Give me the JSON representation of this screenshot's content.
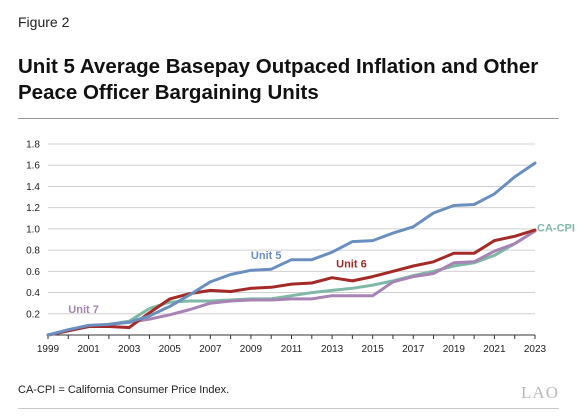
{
  "figure_label": "Figure 2",
  "title": "Unit 5 Average Basepay Outpaced Inflation and Other Peace Officer Bargaining Units",
  "note": "CA-CPI = California Consumer Price Index.",
  "logo": "LAO",
  "chart_data": {
    "type": "line",
    "title": "Unit 5 Average Basepay Outpaced Inflation and Other Peace Officer Bargaining Units",
    "xlabel": "",
    "ylabel": "",
    "xlim": [
      1999,
      2023
    ],
    "ylim": [
      0,
      1.8
    ],
    "x_ticks": [
      "1999",
      "2001",
      "2003",
      "2005",
      "2007",
      "2009",
      "2011",
      "2013",
      "2015",
      "2017",
      "2019",
      "2021",
      "2023"
    ],
    "y_ticks": [
      "0.2",
      "0.4",
      "0.6",
      "0.8",
      "1.0",
      "1.2",
      "1.4",
      "1.6",
      "1.8"
    ],
    "grid": true,
    "x": [
      1999,
      2000,
      2001,
      2002,
      2003,
      2004,
      2005,
      2006,
      2007,
      2008,
      2009,
      2010,
      2011,
      2012,
      2013,
      2014,
      2015,
      2016,
      2017,
      2018,
      2019,
      2020,
      2021,
      2022,
      2023
    ],
    "series": [
      {
        "name": "Unit 5",
        "color": "#6a8fbf",
        "values": [
          0.0,
          0.05,
          0.09,
          0.1,
          0.12,
          0.18,
          0.27,
          0.38,
          0.5,
          0.57,
          0.61,
          0.62,
          0.71,
          0.71,
          0.78,
          0.88,
          0.89,
          0.96,
          1.02,
          1.15,
          1.22,
          1.23,
          1.33,
          1.49,
          1.62
        ]
      },
      {
        "name": "Unit 6",
        "color": "#a32a26",
        "values": [
          0.0,
          0.04,
          0.08,
          0.08,
          0.07,
          0.21,
          0.34,
          0.39,
          0.42,
          0.41,
          0.44,
          0.45,
          0.48,
          0.49,
          0.54,
          0.51,
          0.55,
          0.6,
          0.65,
          0.69,
          0.77,
          0.77,
          0.89,
          0.93,
          0.99
        ]
      },
      {
        "name": "CA-CPI",
        "color": "#7fb9a6",
        "values": [
          0.0,
          0.04,
          0.08,
          0.1,
          0.13,
          0.25,
          0.31,
          0.32,
          0.32,
          0.33,
          0.34,
          0.34,
          0.37,
          0.4,
          0.42,
          0.44,
          0.47,
          0.51,
          0.56,
          0.6,
          0.65,
          0.68,
          0.75,
          0.86,
          0.98
        ]
      },
      {
        "name": "Unit 7",
        "color": "#a784b3",
        "values": [
          0.0,
          0.04,
          0.08,
          0.1,
          0.12,
          0.15,
          0.19,
          0.24,
          0.3,
          0.32,
          0.33,
          0.33,
          0.34,
          0.34,
          0.37,
          0.37,
          0.37,
          0.5,
          0.55,
          0.58,
          0.68,
          0.69,
          0.79,
          0.86,
          0.98
        ]
      }
    ]
  }
}
